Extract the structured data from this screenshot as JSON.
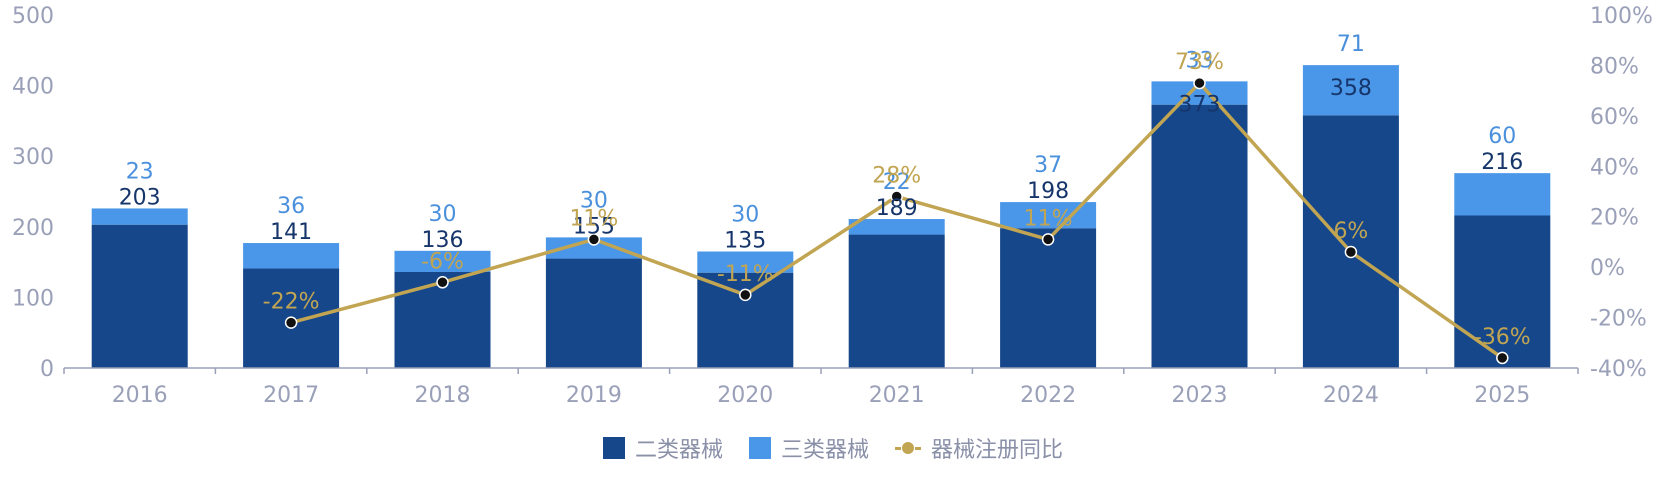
{
  "chart_data": {
    "type": "bar",
    "stacked": true,
    "categories": [
      "2016",
      "2017",
      "2018",
      "2019",
      "2020",
      "2021",
      "2022",
      "2023",
      "2024",
      "2025"
    ],
    "series": [
      {
        "name": "二类器械",
        "type": "bar",
        "axis": "left",
        "color": "#16478a",
        "values": [
          203,
          141,
          136,
          155,
          135,
          189,
          198,
          373,
          358,
          216
        ]
      },
      {
        "name": "三类器械",
        "type": "bar",
        "axis": "left",
        "color": "#4a96e8",
        "values": [
          23,
          36,
          30,
          30,
          30,
          22,
          37,
          33,
          71,
          60
        ]
      },
      {
        "name": "器械注册同比",
        "type": "line",
        "axis": "right",
        "color": "#c1a552",
        "values": [
          null,
          -22,
          -6,
          11,
          -11,
          28,
          11,
          73,
          6,
          -36
        ],
        "labels": [
          "",
          "-22%",
          "-6%",
          "11%",
          "-11%",
          "28%",
          "11%",
          "73%",
          "6%",
          "-36%"
        ]
      }
    ],
    "y_left": {
      "min": 0,
      "max": 500,
      "ticks": [
        "0",
        "100",
        "200",
        "300",
        "400",
        "500"
      ]
    },
    "y_right": {
      "min": -40,
      "max": 100,
      "ticks": [
        "-40%",
        "-20%",
        "0%",
        "20%",
        "40%",
        "60%",
        "80%",
        "100%"
      ]
    },
    "legend_position": "bottom-center",
    "grid": false,
    "colors": {
      "axis": "#9aa0b8",
      "dark_label": "#16356a",
      "light_label": "#4a90dd",
      "pct_label": "#c1a552"
    }
  }
}
